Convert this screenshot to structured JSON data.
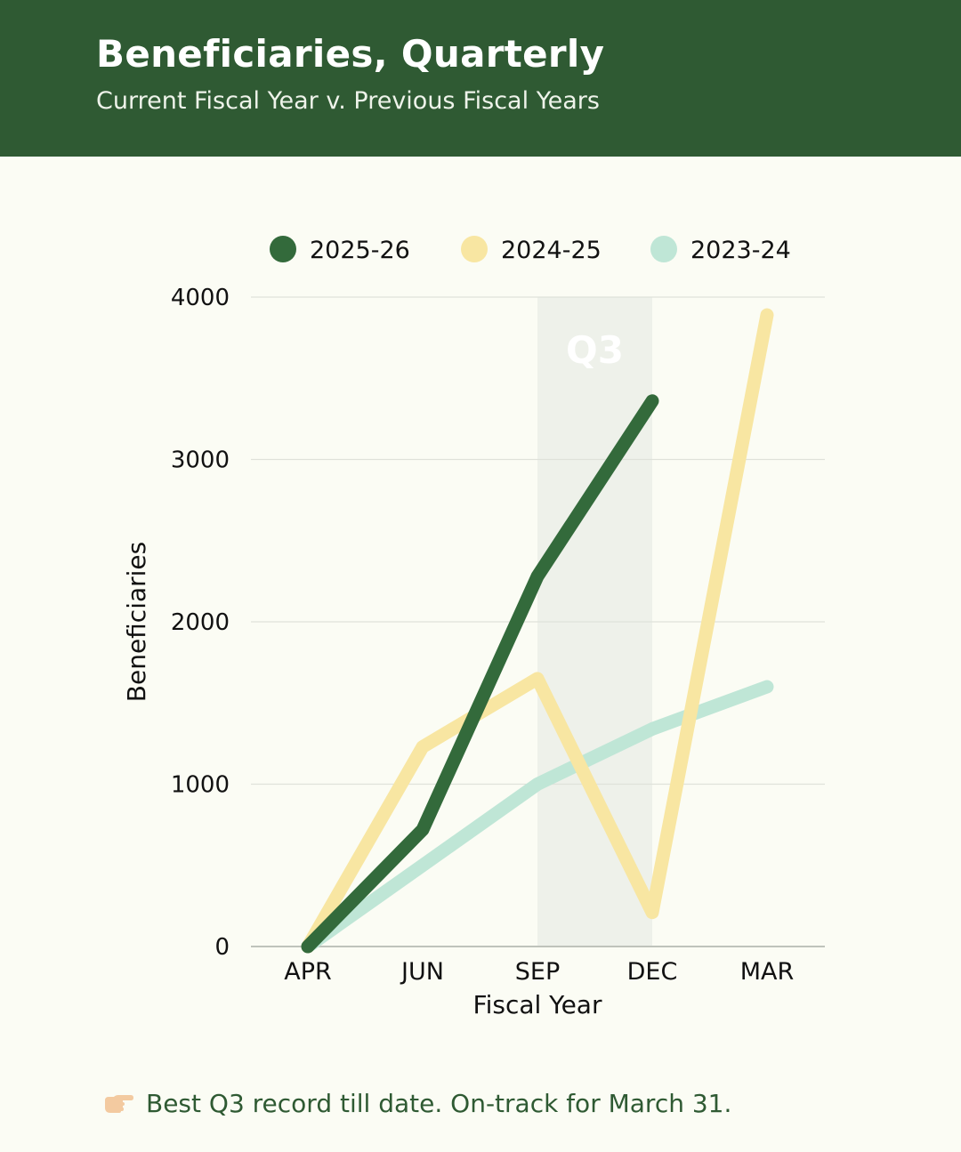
{
  "header": {
    "title": "Beneficiaries, Quarterly",
    "subtitle": "Current Fiscal Year v. Previous Fiscal Years"
  },
  "chart_data": {
    "type": "line",
    "x": [
      "APR",
      "JUN",
      "SEP",
      "DEC",
      "MAR"
    ],
    "xlabel": "Fiscal Year",
    "ylabel": "Beneficiaries",
    "ylim": [
      0,
      4000
    ],
    "yticks": [
      0,
      1000,
      2000,
      3000,
      4000
    ],
    "grid": true,
    "legend_position": "top",
    "highlight": {
      "label": "Q3",
      "from": "SEP",
      "to": "DEC"
    },
    "series": [
      {
        "name": "2025-26",
        "color": "#336a3b",
        "values": [
          0,
          720,
          2280,
          3360,
          null
        ]
      },
      {
        "name": "2024-25",
        "color": "#f8e6a2",
        "values": [
          0,
          1230,
          1650,
          210,
          3890
        ]
      },
      {
        "name": "2023-24",
        "color": "#bfe6d6",
        "values": [
          0,
          500,
          1000,
          1340,
          1600
        ]
      }
    ]
  },
  "footer": {
    "icon": "pointing-hand-icon",
    "note": "Best Q3 record till date. On-track for March 31."
  }
}
